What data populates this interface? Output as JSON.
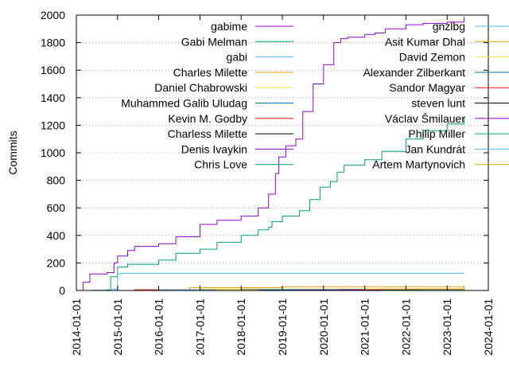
{
  "chart_data": {
    "type": "line",
    "ylabel": "Commits",
    "ylim": [
      0,
      2000
    ],
    "yticks": [
      0,
      200,
      400,
      600,
      800,
      1000,
      1200,
      1400,
      1600,
      1800,
      2000
    ],
    "xlim": [
      "2014-01-01",
      "2024-01-01"
    ],
    "xticks": [
      "2014-01-01",
      "2015-01-01",
      "2016-01-01",
      "2017-01-01",
      "2018-01-01",
      "2019-01-01",
      "2020-01-01",
      "2021-01-01",
      "2022-01-01",
      "2023-01-01",
      "2024-01-01"
    ],
    "grid": "y",
    "legend_columns": 2,
    "series": [
      {
        "name": "gabime",
        "color": "#9400d3",
        "points": [
          [
            "2014-01-01",
            0
          ],
          [
            "2014-03-01",
            60
          ],
          [
            "2014-05-01",
            120
          ],
          [
            "2014-10-01",
            130
          ],
          [
            "2014-12-01",
            200
          ],
          [
            "2015-01-01",
            250
          ],
          [
            "2015-04-01",
            290
          ],
          [
            "2015-06-01",
            320
          ],
          [
            "2016-01-01",
            340
          ],
          [
            "2016-06-01",
            390
          ],
          [
            "2017-01-01",
            480
          ],
          [
            "2017-06-01",
            510
          ],
          [
            "2018-01-01",
            540
          ],
          [
            "2018-06-01",
            600
          ],
          [
            "2018-09-01",
            700
          ],
          [
            "2018-11-01",
            850
          ],
          [
            "2018-12-01",
            970
          ],
          [
            "2019-02-01",
            1050
          ],
          [
            "2019-05-01",
            1100
          ],
          [
            "2019-07-01",
            1300
          ],
          [
            "2019-10-01",
            1500
          ],
          [
            "2020-01-01",
            1640
          ],
          [
            "2020-04-01",
            1800
          ],
          [
            "2020-06-01",
            1830
          ],
          [
            "2020-08-01",
            1840
          ],
          [
            "2021-01-01",
            1860
          ],
          [
            "2021-04-01",
            1870
          ],
          [
            "2021-07-01",
            1900
          ],
          [
            "2022-01-01",
            1930
          ],
          [
            "2022-06-01",
            1940
          ],
          [
            "2023-01-01",
            1950
          ],
          [
            "2023-06-01",
            1990
          ]
        ]
      },
      {
        "name": "Gabi Melman",
        "color": "#009e73",
        "points": [
          [
            "2014-01-01",
            0
          ],
          [
            "2014-06-01",
            2
          ],
          [
            "2014-10-01",
            5
          ],
          [
            "2014-11-01",
            100
          ],
          [
            "2015-01-01",
            170
          ],
          [
            "2015-04-01",
            190
          ],
          [
            "2016-01-01",
            220
          ],
          [
            "2016-06-01",
            270
          ],
          [
            "2017-01-01",
            300
          ],
          [
            "2017-06-01",
            350
          ],
          [
            "2018-01-01",
            400
          ],
          [
            "2018-06-01",
            440
          ],
          [
            "2018-09-01",
            460
          ],
          [
            "2018-10-01",
            500
          ],
          [
            "2019-01-01",
            540
          ],
          [
            "2019-06-01",
            580
          ],
          [
            "2019-09-01",
            660
          ],
          [
            "2019-12-01",
            750
          ],
          [
            "2020-03-01",
            790
          ],
          [
            "2020-05-01",
            860
          ],
          [
            "2020-07-01",
            910
          ],
          [
            "2021-01-01",
            950
          ],
          [
            "2021-06-01",
            1010
          ],
          [
            "2022-01-01",
            1100
          ],
          [
            "2022-06-01",
            1160
          ],
          [
            "2023-01-01",
            1210
          ],
          [
            "2023-06-01",
            1260
          ]
        ]
      },
      {
        "name": "gabi",
        "color": "#56b4e9",
        "points": [
          [
            "2014-01-01",
            0
          ],
          [
            "2014-11-01",
            10
          ],
          [
            "2015-01-01",
            120
          ],
          [
            "2015-02-01",
            125
          ],
          [
            "2023-06-01",
            125
          ]
        ]
      },
      {
        "name": "Charles Milette",
        "color": "#e69f00",
        "points": [
          [
            "2014-01-01",
            0
          ],
          [
            "2016-09-01",
            0
          ],
          [
            "2016-10-01",
            20
          ],
          [
            "2019-01-01",
            28
          ],
          [
            "2023-06-01",
            35
          ]
        ]
      },
      {
        "name": "Daniel Chabrowski",
        "color": "#f0e442",
        "points": [
          [
            "2014-01-01",
            0
          ],
          [
            "2017-01-01",
            10
          ],
          [
            "2023-06-01",
            20
          ]
        ]
      },
      {
        "name": "Muhammed Galib Uludag",
        "color": "#0072b2",
        "points": [
          [
            "2014-01-01",
            0
          ],
          [
            "2018-01-01",
            8
          ],
          [
            "2023-06-01",
            15
          ]
        ]
      },
      {
        "name": "Kevin M. Godby",
        "color": "#e51e10",
        "points": [
          [
            "2014-01-01",
            0
          ],
          [
            "2015-06-01",
            5
          ],
          [
            "2023-06-01",
            10
          ]
        ]
      },
      {
        "name": "Charless Milette",
        "color": "#000000",
        "points": [
          [
            "2014-01-01",
            0
          ],
          [
            "2021-06-01",
            5
          ],
          [
            "2023-06-01",
            12
          ]
        ]
      },
      {
        "name": "Denis Ivaykin",
        "color": "#9400d3",
        "points": [
          [
            "2014-01-01",
            0
          ],
          [
            "2019-01-01",
            5
          ],
          [
            "2023-06-01",
            8
          ]
        ]
      },
      {
        "name": "Chris Love",
        "color": "#009e73",
        "points": [
          [
            "2014-01-01",
            0
          ],
          [
            "2020-01-01",
            3
          ],
          [
            "2023-06-01",
            6
          ]
        ]
      },
      {
        "name": "gnzlbg",
        "color": "#56b4e9",
        "points": [
          [
            "2014-01-01",
            0
          ],
          [
            "2016-01-01",
            4
          ],
          [
            "2023-06-01",
            7
          ]
        ]
      },
      {
        "name": "Asit Kumar Dhal",
        "color": "#e69f00",
        "points": [
          [
            "2014-01-01",
            0
          ],
          [
            "2021-01-01",
            10
          ],
          [
            "2023-06-01",
            30
          ]
        ]
      },
      {
        "name": "David Zemon",
        "color": "#f0e442",
        "points": [
          [
            "2014-01-01",
            0
          ],
          [
            "2017-06-01",
            4
          ],
          [
            "2023-06-01",
            6
          ]
        ]
      },
      {
        "name": "Alexander Zilberkant",
        "color": "#0072b2",
        "points": [
          [
            "2014-01-01",
            0
          ],
          [
            "2018-06-01",
            3
          ],
          [
            "2023-06-01",
            5
          ]
        ]
      },
      {
        "name": "Sandor Magyar",
        "color": "#e51e10",
        "points": [
          [
            "2014-01-01",
            0
          ],
          [
            "2020-06-01",
            4
          ],
          [
            "2023-06-01",
            6
          ]
        ]
      },
      {
        "name": "steven lunt",
        "color": "#000000",
        "points": [
          [
            "2014-01-01",
            0
          ],
          [
            "2022-01-01",
            4
          ],
          [
            "2023-06-01",
            8
          ]
        ]
      },
      {
        "name": "Václav Šmilauer",
        "color": "#9400d3",
        "points": [
          [
            "2014-01-01",
            0
          ],
          [
            "2019-06-01",
            3
          ],
          [
            "2023-06-01",
            5
          ]
        ]
      },
      {
        "name": "Philip Miller",
        "color": "#009e73",
        "points": [
          [
            "2014-01-01",
            0
          ],
          [
            "2021-06-01",
            3
          ],
          [
            "2023-06-01",
            5
          ]
        ]
      },
      {
        "name": "Jan Kundrát",
        "color": "#56b4e9",
        "points": [
          [
            "2014-01-01",
            0
          ],
          [
            "2022-06-01",
            3
          ],
          [
            "2023-06-01",
            4
          ]
        ]
      },
      {
        "name": "Artem Martynovich",
        "color": "#e69f00",
        "points": [
          [
            "2014-01-01",
            0
          ],
          [
            "2022-01-01",
            10
          ],
          [
            "2023-06-01",
            25
          ]
        ]
      }
    ]
  }
}
